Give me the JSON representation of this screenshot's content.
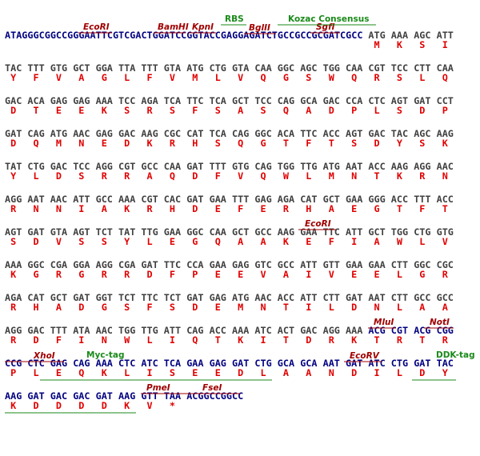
{
  "rows": [
    {
      "segments": [
        {
          "text": "ATAGGGCGGCCGGGAATTCGTCGACTGGATCCGGTACCGAGGAGATCTGCCGCCGCGATCGCC",
          "color": "#000080"
        },
        {
          "codons": [
            "ATG",
            "AAA",
            "AGC",
            "ATT"
          ],
          "color": "#404040"
        }
      ],
      "protein": [
        "M",
        "K",
        "S",
        "I"
      ],
      "labels": [
        {
          "text": "EcoRI",
          "color": "#a00000"
        },
        {
          "text": "BamHI",
          "color": "#a00000"
        },
        {
          "text": "KpnI",
          "color": "#a00000"
        },
        {
          "text": "BglII",
          "color": "#a00000"
        },
        {
          "text": "SgfI",
          "color": "#a00000"
        },
        {
          "text": "RBS",
          "color": "#1a8a1a"
        },
        {
          "text": "Kozac Consensus",
          "color": "#1a8a1a"
        }
      ]
    },
    {
      "segments": [
        {
          "codons": [
            "TAC",
            "TTT",
            "GTG",
            "GCT",
            "GGA",
            "TTA",
            "TTT",
            "GTA",
            "ATG",
            "CTG",
            "GTA",
            "CAA",
            "GGC",
            "AGC",
            "TGG",
            "CAA",
            "CGT",
            "TCC",
            "CTT",
            "CAA"
          ],
          "color": "#404040"
        }
      ],
      "protein": [
        "Y",
        "F",
        "V",
        "A",
        "G",
        "L",
        "F",
        "V",
        "M",
        "L",
        "V",
        "Q",
        "G",
        "S",
        "W",
        "Q",
        "R",
        "S",
        "L",
        "Q"
      ],
      "labels": []
    },
    {
      "segments": [
        {
          "codons": [
            "GAC",
            "ACA",
            "GAG",
            "GAG",
            "AAA",
            "TCC",
            "AGA",
            "TCA",
            "TTC",
            "TCA",
            "GCT",
            "TCC",
            "CAG",
            "GCA",
            "GAC",
            "CCA",
            "CTC",
            "AGT",
            "GAT",
            "CCT"
          ],
          "color": "#404040"
        }
      ],
      "protein": [
        "D",
        "T",
        "E",
        "E",
        "K",
        "S",
        "R",
        "S",
        "F",
        "S",
        "A",
        "S",
        "Q",
        "A",
        "D",
        "P",
        "L",
        "S",
        "D",
        "P"
      ],
      "labels": []
    },
    {
      "segments": [
        {
          "codons": [
            "GAT",
            "CAG",
            "ATG",
            "AAC",
            "GAG",
            "GAC",
            "AAG",
            "CGC",
            "CAT",
            "TCA",
            "CAG",
            "GGC",
            "ACA",
            "TTC",
            "ACC",
            "AGT",
            "GAC",
            "TAC",
            "AGC",
            "AAG"
          ],
          "color": "#404040"
        }
      ],
      "protein": [
        "D",
        "Q",
        "M",
        "N",
        "E",
        "D",
        "K",
        "R",
        "H",
        "S",
        "Q",
        "G",
        "T",
        "F",
        "T",
        "S",
        "D",
        "Y",
        "S",
        "K"
      ],
      "labels": []
    },
    {
      "segments": [
        {
          "codons": [
            "TAT",
            "CTG",
            "GAC",
            "TCC",
            "AGG",
            "CGT",
            "GCC",
            "CAA",
            "GAT",
            "TTT",
            "GTG",
            "CAG",
            "TGG",
            "TTG",
            "ATG",
            "AAT",
            "ACC",
            "AAG",
            "AGG",
            "AAC"
          ],
          "color": "#404040"
        }
      ],
      "protein": [
        "Y",
        "L",
        "D",
        "S",
        "R",
        "R",
        "A",
        "Q",
        "D",
        "F",
        "V",
        "Q",
        "W",
        "L",
        "M",
        "N",
        "T",
        "K",
        "R",
        "N"
      ],
      "labels": []
    },
    {
      "segments": [
        {
          "codons": [
            "AGG",
            "AAT",
            "AAC",
            "ATT",
            "GCC",
            "AAA",
            "CGT",
            "CAC",
            "GAT",
            "GAA",
            "TTT",
            "GAG",
            "AGA",
            "CAT",
            "GCT",
            "GAA",
            "GGG",
            "ACC",
            "TTT",
            "ACC"
          ],
          "color": "#404040"
        }
      ],
      "protein": [
        "R",
        "N",
        "N",
        "I",
        "A",
        "K",
        "R",
        "H",
        "D",
        "E",
        "F",
        "E",
        "R",
        "H",
        "A",
        "E",
        "G",
        "T",
        "F",
        "T"
      ],
      "labels": []
    },
    {
      "segments": [
        {
          "codons": [
            "AGT",
            "GAT",
            "GTA",
            "AGT",
            "TCT",
            "TAT",
            "TTG",
            "GAA",
            "GGC",
            "CAA",
            "GCT",
            "GCC",
            "AAG",
            "GAA",
            "TTC",
            "ATT",
            "GCT",
            "TGG",
            "CTG",
            "GTG"
          ],
          "color": "#404040"
        }
      ],
      "protein": [
        "S",
        "D",
        "V",
        "S",
        "S",
        "Y",
        "L",
        "E",
        "G",
        "Q",
        "A",
        "A",
        "K",
        "E",
        "F",
        "I",
        "A",
        "W",
        "L",
        "V"
      ],
      "labels": [
        {
          "text": "EcoRI",
          "color": "#a00000"
        }
      ]
    },
    {
      "segments": [
        {
          "codons": [
            "AAA",
            "GGC",
            "CGA",
            "GGA",
            "AGG",
            "CGA",
            "GAT",
            "TTC",
            "CCA",
            "GAA",
            "GAG",
            "GTC",
            "GCC",
            "ATT",
            "GTT",
            "GAA",
            "GAA",
            "CTT",
            "GGC",
            "CGC"
          ],
          "color": "#404040"
        }
      ],
      "protein": [
        "K",
        "G",
        "R",
        "G",
        "R",
        "R",
        "D",
        "F",
        "P",
        "E",
        "E",
        "V",
        "A",
        "I",
        "V",
        "E",
        "E",
        "L",
        "G",
        "R"
      ],
      "labels": []
    },
    {
      "segments": [
        {
          "codons": [
            "AGA",
            "CAT",
            "GCT",
            "GAT",
            "GGT",
            "TCT",
            "TTC",
            "TCT",
            "GAT",
            "GAG",
            "ATG",
            "AAC",
            "ACC",
            "ATT",
            "CTT",
            "GAT",
            "AAT",
            "CTT",
            "GCC",
            "GCC"
          ],
          "color": "#404040"
        }
      ],
      "protein": [
        "R",
        "H",
        "A",
        "D",
        "G",
        "S",
        "F",
        "S",
        "D",
        "E",
        "M",
        "N",
        "T",
        "I",
        "L",
        "D",
        "N",
        "L",
        "A",
        "A"
      ],
      "labels": []
    },
    {
      "segments": [
        {
          "codons": [
            "AGG",
            "GAC",
            "TTT",
            "ATA",
            "AAC",
            "TGG",
            "TTG",
            "ATT",
            "CAG",
            "ACC",
            "AAA",
            "ATC",
            "ACT",
            "GAC",
            "AGG",
            "AAA"
          ],
          "color": "#404040"
        },
        {
          "codons": [
            "ACG",
            "CGT",
            "ACG",
            "CGG"
          ],
          "color": "#000080"
        }
      ],
      "protein": [
        "R",
        "D",
        "F",
        "I",
        "N",
        "W",
        "L",
        "I",
        "Q",
        "T",
        "K",
        "I",
        "T",
        "D",
        "R",
        "K",
        "T",
        "R",
        "T",
        "R"
      ],
      "labels": [
        {
          "text": "MluI",
          "color": "#a00000"
        },
        {
          "text": "NotI",
          "color": "#a00000"
        }
      ]
    },
    {
      "segments": [
        {
          "codons": [
            "CCG",
            "CTC",
            "GAG",
            "CAG",
            "AAA",
            "CTC",
            "ATC",
            "TCA",
            "GAA",
            "GAG",
            "GAT",
            "CTG",
            "GCA",
            "GCA",
            "AAT",
            "GAT",
            "ATC",
            "CTG",
            "GAT",
            "TAC"
          ],
          "color": "#000080"
        }
      ],
      "protein": [
        "P",
        "L",
        "E",
        "Q",
        "K",
        "L",
        "I",
        "S",
        "E",
        "E",
        "D",
        "L",
        "A",
        "A",
        "N",
        "D",
        "I",
        "L",
        "D",
        "Y"
      ],
      "labels": [
        {
          "text": "XhoI",
          "color": "#a00000"
        },
        {
          "text": "Myc-tag",
          "color": "#1a8a1a"
        },
        {
          "text": "EcoRV",
          "color": "#a00000"
        },
        {
          "text": "DDK-tag",
          "color": "#1a8a1a"
        }
      ]
    },
    {
      "segments": [
        {
          "codons": [
            "AAG",
            "GAT",
            "GAC",
            "GAC",
            "GAT",
            "AAG",
            "GTT",
            "TAA"
          ],
          "color": "#000080"
        },
        {
          "text": "ACGGCCGGCC",
          "color": "#000080"
        }
      ],
      "protein": [
        "K",
        "D",
        "D",
        "D",
        "D",
        "K",
        "V",
        "*"
      ],
      "labels": [
        {
          "text": "PmeI",
          "color": "#a00000"
        },
        {
          "text": "FseI",
          "color": "#a00000"
        }
      ]
    }
  ]
}
